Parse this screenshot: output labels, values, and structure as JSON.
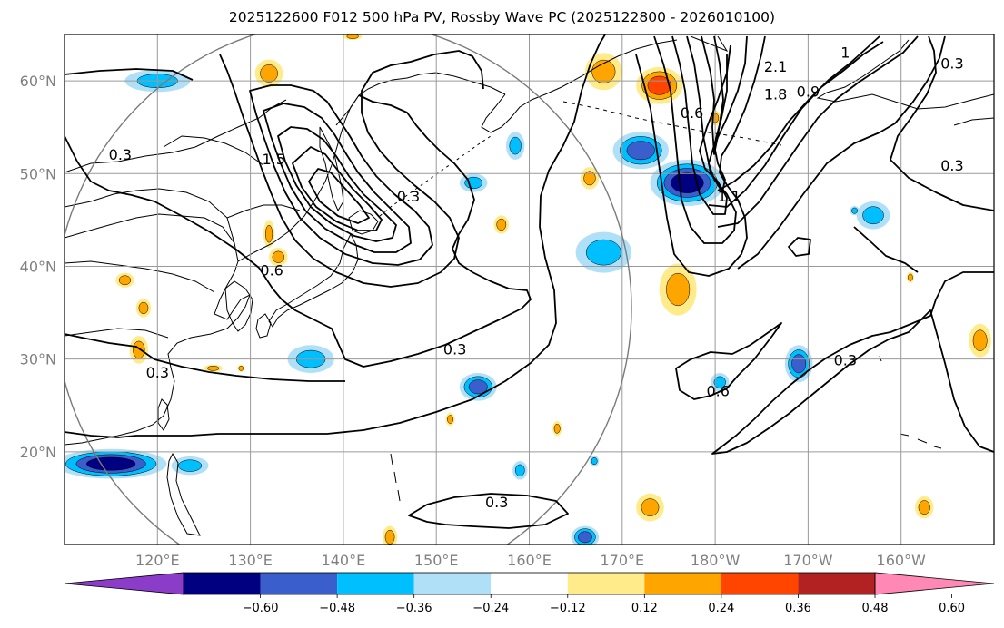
{
  "title": "2025122600 F012 500 hPa PV, Rossby Wave PC (2025122800 - 2026010100)",
  "map": {
    "lon_range": [
      110,
      210
    ],
    "lat_range": [
      10,
      65
    ],
    "lat_labels": [
      "20°N",
      "30°N",
      "40°N",
      "50°N",
      "60°N"
    ],
    "lat_values": [
      20,
      30,
      40,
      50,
      60
    ],
    "lon_labels": [
      "120°E",
      "130°E",
      "140°E",
      "150°E",
      "160°E",
      "170°E",
      "180°W",
      "170°W",
      "160°W"
    ],
    "lon_values": [
      120,
      130,
      140,
      150,
      160,
      170,
      180,
      190,
      200
    ],
    "gridlines": true,
    "circle": {
      "center_lon": 140,
      "center_lat": 35.5,
      "radius_deg": 31
    },
    "contour_labels": [
      {
        "text": "0.3",
        "lon": 116,
        "lat": 52
      },
      {
        "text": "1.5",
        "lon": 132.5,
        "lat": 51.5
      },
      {
        "text": "0.3",
        "lon": 147,
        "lat": 47.5
      },
      {
        "text": "0.6",
        "lon": 132.3,
        "lat": 39.5
      },
      {
        "text": "0.3",
        "lon": 120,
        "lat": 28.5
      },
      {
        "text": "0.3",
        "lon": 152,
        "lat": 31
      },
      {
        "text": "0.3",
        "lon": 156.5,
        "lat": 14.5
      },
      {
        "text": "2.1",
        "lon": 186.5,
        "lat": 61.5
      },
      {
        "text": "1.8",
        "lon": 186.5,
        "lat": 58.5
      },
      {
        "text": "0.9",
        "lon": 190,
        "lat": 58.8
      },
      {
        "text": "0.6",
        "lon": 177.5,
        "lat": 56.5
      },
      {
        "text": "1",
        "lon": 194,
        "lat": 63
      },
      {
        "text": "0.3",
        "lon": 205.5,
        "lat": 61.8
      },
      {
        "text": "0.3",
        "lon": 205.5,
        "lat": 50.8
      },
      {
        "text": "1.1",
        "lon": 181.5,
        "lat": 47.5
      },
      {
        "text": "0.6",
        "lon": 180.3,
        "lat": 26.5
      },
      {
        "text": "0.3",
        "lon": 194,
        "lat": 29.8
      }
    ]
  },
  "colorbar": {
    "colors": [
      "#8b3cc8",
      "#000080",
      "#3a5fcd",
      "#00bfff",
      "#b0e0f8",
      "#ffffff",
      "#ffeb8a",
      "#ffa500",
      "#ff4500",
      "#b22222",
      "#ff88b4"
    ],
    "tick_labels": [
      "−0.60",
      "−0.48",
      "−0.36",
      "−0.24",
      "−0.12",
      "0.12",
      "0.24",
      "0.36",
      "0.48",
      "0.60"
    ]
  },
  "anomalies": [
    {
      "lon": 120,
      "lat": 60,
      "rx": 3.5,
      "ry": 1.2,
      "v": -0.3
    },
    {
      "lon": 132,
      "lat": 60.8,
      "rx": 1.5,
      "ry": 1.5,
      "v": 0.32
    },
    {
      "lon": 115,
      "lat": 18.7,
      "rx": 6,
      "ry": 1.6,
      "v": -0.5
    },
    {
      "lon": 123.5,
      "lat": 18.5,
      "rx": 2,
      "ry": 1,
      "v": -0.26
    },
    {
      "lon": 136.5,
      "lat": 30,
      "rx": 2.5,
      "ry": 1.5,
      "v": -0.28
    },
    {
      "lon": 154.5,
      "lat": 27,
      "rx": 2,
      "ry": 1.5,
      "v": -0.38
    },
    {
      "lon": 158.5,
      "lat": 53,
      "rx": 1,
      "ry": 1.5,
      "v": -0.25
    },
    {
      "lon": 154,
      "lat": 49,
      "rx": 1.5,
      "ry": 1,
      "v": -0.25
    },
    {
      "lon": 168,
      "lat": 41.5,
      "rx": 3,
      "ry": 2.2,
      "v": -0.3
    },
    {
      "lon": 172,
      "lat": 52.5,
      "rx": 3,
      "ry": 2,
      "v": -0.36
    },
    {
      "lon": 177,
      "lat": 49,
      "rx": 4,
      "ry": 2.5,
      "v": -0.5
    },
    {
      "lon": 168,
      "lat": 61,
      "rx": 2,
      "ry": 2,
      "v": 0.35
    },
    {
      "lon": 174,
      "lat": 59.5,
      "rx": 2.5,
      "ry": 2,
      "v": 0.42
    },
    {
      "lon": 176,
      "lat": 37.5,
      "rx": 2,
      "ry": 2.8,
      "v": 0.32
    },
    {
      "lon": 197,
      "lat": 45.5,
      "rx": 1.8,
      "ry": 1.5,
      "v": -0.28
    },
    {
      "lon": 189,
      "lat": 29.5,
      "rx": 1.5,
      "ry": 2,
      "v": -0.38
    },
    {
      "lon": 180.5,
      "lat": 27.5,
      "rx": 1,
      "ry": 1,
      "v": -0.3
    },
    {
      "lon": 173,
      "lat": 14,
      "rx": 1.5,
      "ry": 1.5,
      "v": 0.35
    },
    {
      "lon": 166,
      "lat": 10.8,
      "rx": 1.5,
      "ry": 1.2,
      "v": -0.45
    },
    {
      "lon": 159,
      "lat": 18,
      "rx": 0.8,
      "ry": 1,
      "v": -0.26
    },
    {
      "lon": 167,
      "lat": 19,
      "rx": 0.5,
      "ry": 0.6,
      "v": -0.25
    },
    {
      "lon": 166.5,
      "lat": 49.5,
      "rx": 1,
      "ry": 1.2,
      "v": 0.28
    },
    {
      "lon": 157,
      "lat": 44.5,
      "rx": 0.8,
      "ry": 1,
      "v": 0.28
    },
    {
      "lon": 132,
      "lat": 43.5,
      "rx": 0.6,
      "ry": 1.5,
      "v": 0.28
    },
    {
      "lon": 133,
      "lat": 41,
      "rx": 1,
      "ry": 1,
      "v": 0.28
    },
    {
      "lon": 116.5,
      "lat": 38.5,
      "rx": 1,
      "ry": 0.8,
      "v": 0.26
    },
    {
      "lon": 118.5,
      "lat": 35.5,
      "rx": 0.8,
      "ry": 1,
      "v": 0.26
    },
    {
      "lon": 118,
      "lat": 31,
      "rx": 1,
      "ry": 1.5,
      "v": 0.27
    },
    {
      "lon": 126,
      "lat": 29,
      "rx": 1,
      "ry": 0.4,
      "v": 0.24
    },
    {
      "lon": 129,
      "lat": 29,
      "rx": 0.4,
      "ry": 0.4,
      "v": 0.24
    },
    {
      "lon": 151.5,
      "lat": 23.5,
      "rx": 0.5,
      "ry": 0.7,
      "v": 0.26
    },
    {
      "lon": 163,
      "lat": 22.5,
      "rx": 0.5,
      "ry": 0.8,
      "v": 0.26
    },
    {
      "lon": 145,
      "lat": 10.8,
      "rx": 0.8,
      "ry": 1.2,
      "v": 0.28
    },
    {
      "lon": 195,
      "lat": 46,
      "rx": 0.5,
      "ry": 0.5,
      "v": -0.25
    },
    {
      "lon": 180,
      "lat": 56,
      "rx": 0.6,
      "ry": 0.8,
      "v": 0.26
    },
    {
      "lon": 202.5,
      "lat": 14,
      "rx": 1,
      "ry": 1.2,
      "v": 0.3
    },
    {
      "lon": 208.5,
      "lat": 32,
      "rx": 1.2,
      "ry": 1.8,
      "v": 0.3
    },
    {
      "lon": 201,
      "lat": 38.8,
      "rx": 0.4,
      "ry": 0.6,
      "v": 0.25
    },
    {
      "lon": 141,
      "lat": 64.8,
      "rx": 1,
      "ry": 0.4,
      "v": 0.24
    }
  ]
}
